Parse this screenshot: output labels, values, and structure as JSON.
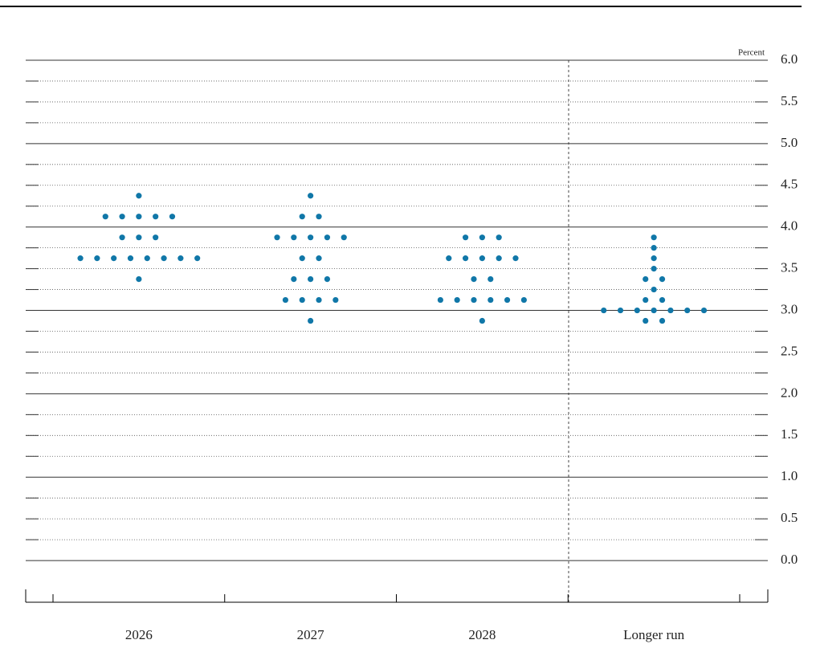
{
  "chart_data": {
    "type": "dot",
    "unit_label": "Percent",
    "categories": [
      "2026",
      "2027",
      "2028",
      "Longer run"
    ],
    "color": "#1077a8",
    "dots": [
      {
        "rates": [
          4.375,
          4.125,
          3.875,
          3.625,
          3.375
        ],
        "counts": [
          1,
          5,
          3,
          8,
          1
        ]
      },
      {
        "rates": [
          4.375,
          4.125,
          3.875,
          3.625,
          3.375,
          3.125,
          2.875
        ],
        "counts": [
          1,
          2,
          5,
          2,
          3,
          4,
          1
        ]
      },
      {
        "rates": [
          3.875,
          3.625,
          3.375,
          3.125,
          2.875
        ],
        "counts": [
          3,
          5,
          2,
          6,
          1
        ]
      },
      {
        "rates": [
          3.875,
          3.75,
          3.625,
          3.5,
          3.375,
          3.25,
          3.125,
          3.0,
          2.875
        ],
        "counts": [
          1,
          1,
          1,
          1,
          2,
          1,
          2,
          7,
          2
        ]
      }
    ],
    "ylim": [
      -0.5,
      6.0
    ],
    "yticks": [
      {
        "value": 0,
        "label": "0.0"
      },
      0.5,
      {
        "value": 1,
        "label": "1.0"
      },
      1.5,
      {
        "value": 2,
        "label": "2.0"
      },
      2.5,
      {
        "value": 3,
        "label": "3.0"
      },
      3.5,
      {
        "value": 4,
        "label": "4.0"
      },
      4.5,
      {
        "value": 5,
        "label": "5.0"
      },
      5.5,
      {
        "value": 6,
        "label": "6.0"
      }
    ],
    "yminor": [
      0.25,
      0.75,
      1.25,
      1.75,
      2.25,
      2.75,
      3.25,
      3.75,
      4.25,
      4.75,
      5.25,
      5.75
    ],
    "grid": true
  }
}
